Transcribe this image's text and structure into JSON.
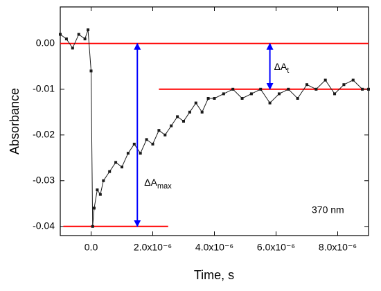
{
  "chart_data": {
    "type": "line",
    "xlabel": "Time, s",
    "ylabel": "Absorbance",
    "x": [
      -1e-06,
      -8e-07,
      -6e-07,
      -4e-07,
      -2e-07,
      -1e-07,
      0,
      5e-08,
      1e-07,
      2e-07,
      3e-07,
      4e-07,
      6e-07,
      8e-07,
      1e-06,
      1.2e-06,
      1.4e-06,
      1.6e-06,
      1.8e-06,
      2e-06,
      2.2e-06,
      2.4e-06,
      2.6e-06,
      2.8e-06,
      3e-06,
      3.2e-06,
      3.4e-06,
      3.6e-06,
      3.8e-06,
      4e-06,
      4.3e-06,
      4.6e-06,
      4.9e-06,
      5.2e-06,
      5.5e-06,
      5.8e-06,
      6.1e-06,
      6.4e-06,
      6.7e-06,
      7e-06,
      7.3e-06,
      7.6e-06,
      7.9e-06,
      8.2e-06,
      8.5e-06,
      8.8e-06,
      9e-06
    ],
    "values": [
      0.002,
      0.001,
      -0.001,
      0.002,
      0.001,
      0.003,
      -0.006,
      -0.04,
      -0.036,
      -0.032,
      -0.033,
      -0.03,
      -0.028,
      -0.026,
      -0.027,
      -0.024,
      -0.022,
      -0.024,
      -0.021,
      -0.022,
      -0.019,
      -0.02,
      -0.018,
      -0.016,
      -0.017,
      -0.015,
      -0.013,
      -0.015,
      -0.012,
      -0.012,
      -0.011,
      -0.01,
      -0.012,
      -0.011,
      -0.01,
      -0.013,
      -0.011,
      -0.01,
      -0.012,
      -0.009,
      -0.01,
      -0.008,
      -0.011,
      -0.009,
      -0.008,
      -0.01,
      -0.01
    ],
    "color": "#1a1a1a",
    "xlim": [
      -1e-06,
      9e-06
    ],
    "ylim": [
      -0.042,
      0.008
    ],
    "xticks": [
      {
        "value": 0,
        "label": "0.0"
      },
      {
        "value": 2e-06,
        "label": "2.0x10⁻⁶"
      },
      {
        "value": 4e-06,
        "label": "4.0x10⁻⁶"
      },
      {
        "value": 6e-06,
        "label": "6.0x10⁻⁶"
      },
      {
        "value": 8e-06,
        "label": "8.0x10⁻⁶"
      }
    ],
    "yticks": [
      {
        "value": 0,
        "label": "0.00"
      },
      -0.01,
      -0.02,
      -0.03,
      -0.04
    ],
    "reference_lines": [
      {
        "y": 0,
        "x": [
          -1e-06,
          9e-06
        ],
        "color": "#ff0000"
      },
      {
        "y": -0.01,
        "x": [
          2.2e-06,
          9e-06
        ],
        "color": "#ff0000"
      },
      {
        "y": -0.04,
        "x": [
          -9e-07,
          2.5e-06
        ],
        "color": "#ff0000"
      }
    ],
    "arrows": [
      {
        "x": 1.5e-06,
        "y": [
          0,
          -0.04
        ],
        "color": "#0000ff"
      },
      {
        "x": 5.8e-06,
        "y": [
          0,
          -0.01
        ],
        "color": "#0000ff"
      }
    ],
    "annotations": [
      {
        "text": "ΔA",
        "sub": "max"
      },
      {
        "text": "ΔA",
        "sub": "t"
      },
      {
        "text": "370 nm"
      }
    ]
  }
}
